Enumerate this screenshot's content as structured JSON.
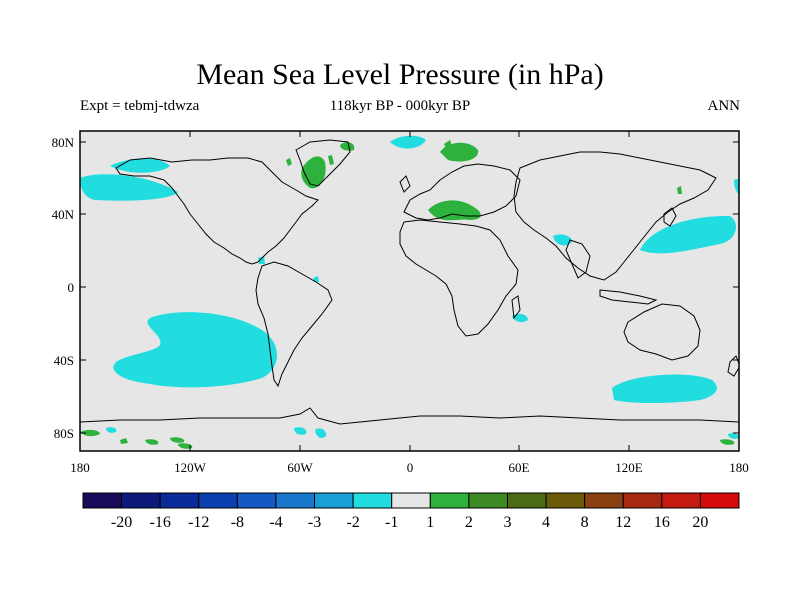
{
  "title": "Mean Sea Level Pressure (in hPa)",
  "experiment": "Expt = tebmj-tdwza",
  "period": "118kyr BP - 000kyr BP",
  "season": "ANN",
  "lat_ticks": [
    "80N",
    "40N",
    "0",
    "40S",
    "80S"
  ],
  "lon_ticks": [
    "180",
    "120W",
    "60W",
    "0",
    "60E",
    "120E",
    "180"
  ],
  "legend": {
    "colors": [
      "#1a0a5c",
      "#0d1a7a",
      "#0a2a99",
      "#0a3fb0",
      "#1557c4",
      "#1a78cc",
      "#1a9ed6",
      "#22dde0",
      "#e6e6e6",
      "#2db33d",
      "#3d8a24",
      "#4d6b14",
      "#6b5a0a",
      "#8a4010",
      "#a82810",
      "#c41a10",
      "#d60a0a"
    ],
    "labels": [
      "-20",
      "-16",
      "-12",
      "-8",
      "-4",
      "-3",
      "-2",
      "-1",
      "1",
      "2",
      "3",
      "4",
      "8",
      "12",
      "16",
      "20"
    ]
  },
  "colors": {
    "background": "#e6e6e6",
    "negative": "#22dde0",
    "positive": "#2db33d"
  }
}
